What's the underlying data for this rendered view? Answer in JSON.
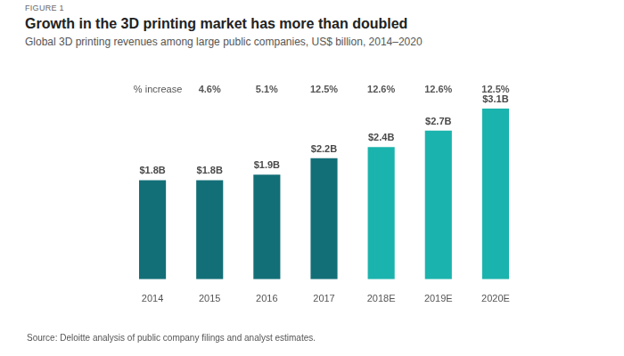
{
  "chart_data": {
    "type": "bar",
    "figure_label": "FIGURE 1",
    "title": "Growth in the 3D printing market has more than doubled",
    "subtitle": "Global 3D printing revenues among large public companies, US$ billion, 2014–2020",
    "source": "Source: Deloitte analysis of public company filings and analyst estimates.",
    "categories": [
      "2014",
      "2015",
      "2016",
      "2017",
      "2018E",
      "2019E",
      "2020E"
    ],
    "values": [
      1.8,
      1.8,
      1.9,
      2.2,
      2.4,
      2.7,
      3.1
    ],
    "value_labels": [
      "$1.8B",
      "$1.8B",
      "$1.9B",
      "$2.2B",
      "$2.4B",
      "$2.7B",
      "$3.1B"
    ],
    "colors": [
      "#136f77",
      "#136f77",
      "#136f77",
      "#136f77",
      "#1bb3ad",
      "#1bb3ad",
      "#1bb3ad"
    ],
    "pct_increase": {
      "label": "% increase",
      "values": [
        null,
        4.6,
        5.1,
        12.5,
        12.6,
        12.6,
        12.5
      ],
      "value_labels": [
        null,
        "4.6%",
        "5.1%",
        "12.5%",
        "12.6%",
        "12.6%",
        "12.5%"
      ]
    },
    "ylim": [
      0,
      3.1
    ],
    "grid": false,
    "data_labels": true,
    "tick_labels": "x"
  }
}
